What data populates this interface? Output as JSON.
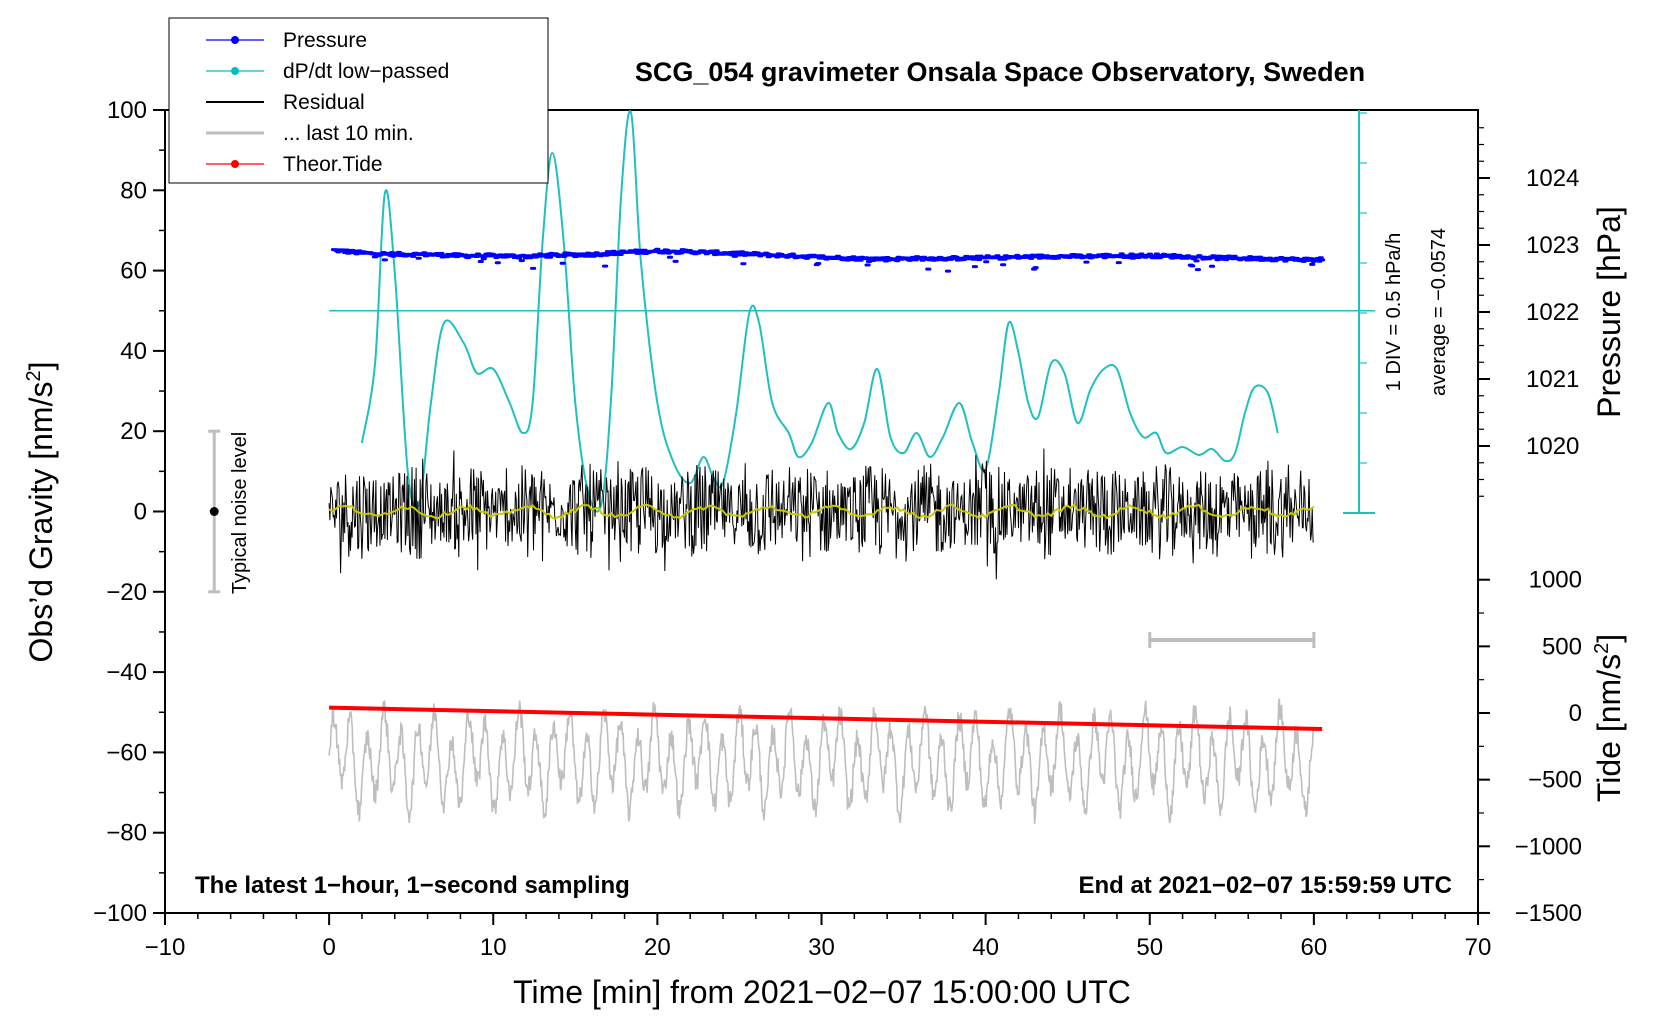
{
  "chart_data": {
    "type": "line",
    "title": "SCG_054 gravimeter Onsala Space Observatory, Sweden",
    "xlabel": "Time [min] from 2021−02−07 15:00:00 UTC",
    "ylabel_left": "Obs’d Gravity [nm/s",
    "ylabel_left_sup": "2",
    "ylabel_left_close": "]",
    "ylabel_right_pressure": "Pressure [hPa]",
    "ylabel_right_tide": "Tide [nm/s",
    "ylabel_right_tide_sup": "2",
    "ylabel_right_tide_close": "]",
    "xlim": [
      -10,
      70
    ],
    "ylim_left": [
      -100,
      100
    ],
    "ylim_pressure": [
      1019,
      1025
    ],
    "ylim_tide": [
      -1500,
      1000
    ],
    "x_ticks": [
      {
        "v": -10,
        "label": "−10"
      },
      {
        "v": 0,
        "label": "0"
      },
      {
        "v": 10,
        "label": "10"
      },
      {
        "v": 20,
        "label": "20"
      },
      {
        "v": 30,
        "label": "30"
      },
      {
        "v": 40,
        "label": "40"
      },
      {
        "v": 50,
        "label": "50"
      },
      {
        "v": 60,
        "label": "60"
      },
      {
        "v": 70,
        "label": "70"
      }
    ],
    "y_ticks_left": [
      {
        "v": 100,
        "label": "100"
      },
      {
        "v": 80,
        "label": "80"
      },
      {
        "v": 60,
        "label": "60"
      },
      {
        "v": 40,
        "label": "40"
      },
      {
        "v": 20,
        "label": "20"
      },
      {
        "v": 0,
        "label": "0"
      },
      {
        "v": -20,
        "label": "−20"
      },
      {
        "v": -40,
        "label": "−40"
      },
      {
        "v": -60,
        "label": "−60"
      },
      {
        "v": -80,
        "label": "−80"
      },
      {
        "v": -100,
        "label": "−100"
      }
    ],
    "y_ticks_pressure": [
      {
        "v": 1024,
        "label": "1024"
      },
      {
        "v": 1023,
        "label": "1023"
      },
      {
        "v": 1022,
        "label": "1022"
      },
      {
        "v": 1021,
        "label": "1021"
      },
      {
        "v": 1020,
        "label": "1020"
      }
    ],
    "y_ticks_tide": [
      {
        "v": 1000,
        "label": "1000"
      },
      {
        "v": 500,
        "label": "500"
      },
      {
        "v": 0,
        "label": "0"
      },
      {
        "v": -500,
        "label": "−500"
      },
      {
        "v": -1000,
        "label": "−1000"
      },
      {
        "v": -1500,
        "label": "−1500"
      }
    ],
    "legend": [
      {
        "label": "Pressure",
        "color": "#0000ff",
        "marker": true
      },
      {
        "label": "dP/dt low−passed",
        "color": "#00c0c0",
        "marker": true
      },
      {
        "label": "Residual",
        "color": "#000000",
        "marker": false
      },
      {
        "label": "... last 10 min.",
        "color": "#bebebe",
        "marker": false
      },
      {
        "label": "Theor.Tide",
        "color": "#ff0000",
        "marker": true
      }
    ],
    "colors": {
      "pressure": "#0000ff",
      "dpdt": "#20c0c0",
      "residual": "#000000",
      "residual_smooth": "#c8c800",
      "last10": "#bebebe",
      "tide": "#ff0000",
      "noise_bar": "#bebebe"
    },
    "series": [
      {
        "name": "Pressure",
        "unit": "hPa",
        "x": [
          0,
          2,
          4,
          6,
          8,
          10,
          12,
          14,
          16,
          18,
          20,
          22,
          24,
          26,
          28,
          30,
          32,
          34,
          36,
          38,
          40,
          42,
          44,
          46,
          48,
          50,
          52,
          54,
          56,
          58,
          60
        ],
        "values": [
          1022.93,
          1022.88,
          1022.86,
          1022.86,
          1022.84,
          1022.84,
          1022.83,
          1022.85,
          1022.86,
          1022.89,
          1022.91,
          1022.9,
          1022.88,
          1022.86,
          1022.84,
          1022.82,
          1022.8,
          1022.79,
          1022.8,
          1022.8,
          1022.81,
          1022.82,
          1022.83,
          1022.83,
          1022.84,
          1022.84,
          1022.83,
          1022.81,
          1022.8,
          1022.79,
          1022.78
        ]
      },
      {
        "name": "dP/dt low−passed",
        "unit": "hPa/h",
        "x": [
          2.0,
          2.8,
          3.4,
          4.0,
          4.8,
          5.5,
          6.2,
          7.0,
          8.2,
          9.0,
          10.0,
          11.0,
          11.8,
          12.4,
          13.0,
          13.6,
          14.3,
          15.0,
          15.8,
          16.6,
          17.2,
          17.8,
          18.4,
          19.0,
          20.0,
          21.0,
          22.0,
          22.8,
          23.4,
          24.0,
          24.8,
          25.6,
          26.2,
          27.0,
          28.0,
          28.6,
          29.4,
          30.4,
          31.0,
          31.8,
          32.6,
          33.4,
          34.2,
          35.0,
          35.8,
          36.6,
          37.4,
          38.4,
          39.2,
          40.0,
          40.8,
          41.4,
          42.0,
          42.6,
          43.2,
          44.0,
          44.8,
          45.6,
          46.4,
          47.2,
          48.0,
          48.8,
          49.6,
          50.4,
          51.0,
          52.0,
          53.0,
          53.8,
          54.6,
          55.2,
          55.8,
          56.4,
          57.2,
          57.8
        ],
        "values": [
          0.35,
          0.75,
          1.6,
          1.2,
          0.2,
          0.05,
          0.55,
          0.95,
          0.85,
          0.7,
          0.72,
          0.55,
          0.4,
          0.55,
          1.35,
          1.8,
          1.35,
          0.55,
          0.1,
          0.05,
          0.6,
          1.6,
          2.0,
          1.25,
          0.55,
          0.25,
          0.15,
          0.28,
          0.18,
          0.15,
          0.5,
          1.0,
          0.95,
          0.55,
          0.4,
          0.28,
          0.35,
          0.55,
          0.4,
          0.32,
          0.45,
          0.72,
          0.38,
          0.3,
          0.4,
          0.28,
          0.38,
          0.55,
          0.35,
          0.22,
          0.6,
          0.95,
          0.8,
          0.55,
          0.48,
          0.75,
          0.7,
          0.45,
          0.62,
          0.72,
          0.72,
          0.5,
          0.38,
          0.4,
          0.3,
          0.33,
          0.29,
          0.32,
          0.26,
          0.3,
          0.5,
          0.63,
          0.6,
          0.4
        ],
        "zero_line": 0.0
      },
      {
        "name": "Residual",
        "unit": "nm/s2",
        "x_range": [
          0,
          60
        ]
      },
      {
        "name": "... last 10 min.",
        "unit": "nm/s2",
        "x_range": [
          0,
          60
        ]
      },
      {
        "name": "Theor.Tide",
        "unit": "nm/s2",
        "x": [
          0,
          60.5
        ],
        "values": [
          40,
          -120
        ]
      }
    ],
    "annotations": {
      "dpdt_scale": "1 DIV = 0.5 hPa/h",
      "dpdt_average": "average = −0.0574",
      "noise_label": "Typical noise level",
      "noise_range": [
        -20,
        20
      ],
      "noise_x": -7,
      "last10_bar_range": [
        50,
        60
      ],
      "footer_left": "The latest 1−hour, 1−second sampling",
      "footer_right": "End at 2021−02−07 15:59:59 UTC"
    }
  }
}
